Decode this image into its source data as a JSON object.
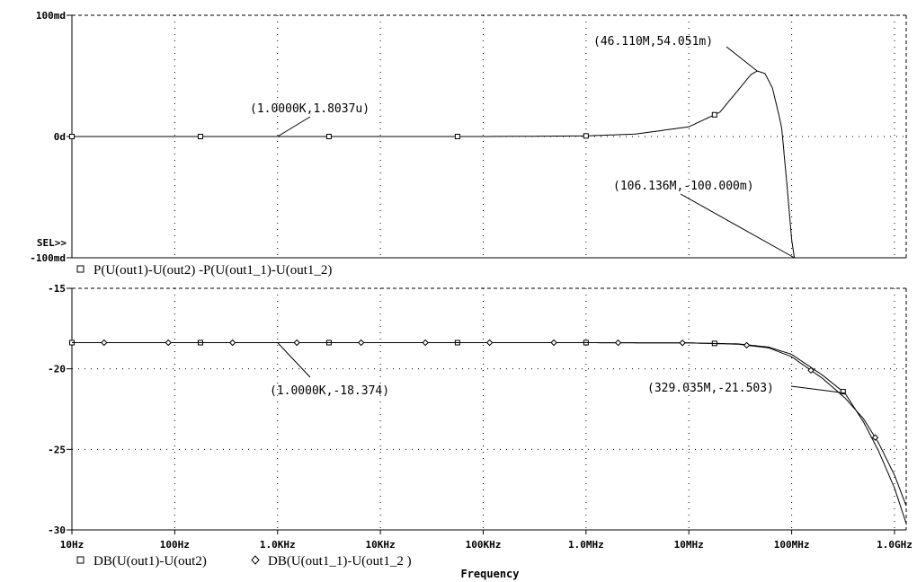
{
  "colors": {
    "background": "#ffffff",
    "ink": "#000000",
    "grid": "#000000"
  },
  "chart_data": [
    {
      "type": "line",
      "xscale": "log",
      "xlim": [
        10,
        1300000000
      ],
      "ylim": [
        -100,
        100
      ],
      "yticks": [
        {
          "value": 100,
          "label": "100md"
        },
        {
          "value": 0,
          "label": "0d"
        },
        {
          "value": -100,
          "label": "-100md"
        }
      ],
      "sel_marker": "SEL>>",
      "legend": [
        {
          "marker": "square",
          "label": "P(U(out1)-U(out2) -P(U(out1_1)-U(out1_2)"
        }
      ],
      "series": [
        {
          "label": "P(U(out1)-U(out2) -P(U(out1_1)-U(out1_2)",
          "marker": "square",
          "points": [
            [
              10,
              0
            ],
            [
              1000,
              0
            ],
            [
              100000,
              0
            ],
            [
              1000000,
              0.5
            ],
            [
              3000000,
              2
            ],
            [
              10000000,
              8
            ],
            [
              20000000,
              20
            ],
            [
              30000000,
              38
            ],
            [
              40000000,
              51
            ],
            [
              46110000,
              54.051
            ],
            [
              55000000,
              52
            ],
            [
              65000000,
              40
            ],
            [
              75000000,
              18
            ],
            [
              80000000,
              7
            ],
            [
              90000000,
              -40
            ],
            [
              100000000,
              -85
            ],
            [
              106136000,
              -100
            ]
          ]
        }
      ],
      "annotations": [
        {
          "label": "(46.110M,54.051m)",
          "x": 46110000,
          "y": 54.051
        },
        {
          "label": "(1.0000K,1.8037u)",
          "x": 1000,
          "y": 0.0018
        },
        {
          "label": "(106.136M,-100.000m)",
          "x": 106136000,
          "y": -100
        }
      ]
    },
    {
      "type": "line",
      "xscale": "log",
      "xlim": [
        10,
        1300000000
      ],
      "ylim": [
        -30,
        -15
      ],
      "yticks": [
        {
          "value": -15,
          "label": "-15"
        },
        {
          "value": -20,
          "label": "-20"
        },
        {
          "value": -25,
          "label": "-25"
        },
        {
          "value": -30,
          "label": "-30"
        }
      ],
      "xticks": [
        {
          "value": 10,
          "label": "10Hz"
        },
        {
          "value": 100,
          "label": "100Hz"
        },
        {
          "value": 1000,
          "label": "1.0KHz"
        },
        {
          "value": 10000,
          "label": "10KHz"
        },
        {
          "value": 100000,
          "label": "100KHz"
        },
        {
          "value": 1000000,
          "label": "1.0MHz"
        },
        {
          "value": 10000000,
          "label": "10MHz"
        },
        {
          "value": 100000000,
          "label": "100MHz"
        },
        {
          "value": 1000000000,
          "label": "1.0GHz"
        }
      ],
      "xlabel": "Frequency",
      "legend": [
        {
          "marker": "square",
          "label": "DB(U(out1)-U(out2)"
        },
        {
          "marker": "diamond",
          "label": "DB(U(out1_1)-U(out1_2 )"
        }
      ],
      "series": [
        {
          "label": "DB(U(out1)-U(out2)",
          "marker": "square",
          "points": [
            [
              10,
              -18.374
            ],
            [
              1000,
              -18.374
            ],
            [
              1000000,
              -18.374
            ],
            [
              10000000,
              -18.39
            ],
            [
              30000000,
              -18.45
            ],
            [
              60000000,
              -18.65
            ],
            [
              100000000,
              -19.1
            ],
            [
              200000000,
              -20.4
            ],
            [
              329035000,
              -21.503
            ],
            [
              500000000,
              -23.3
            ],
            [
              700000000,
              -25.1
            ],
            [
              1000000000,
              -27.4
            ],
            [
              1300000000,
              -29.6
            ]
          ]
        },
        {
          "label": "DB(U(out1_1)-U(out1_2 )",
          "marker": "diamond",
          "points": [
            [
              10,
              -18.374
            ],
            [
              1000,
              -18.374
            ],
            [
              1000000,
              -18.374
            ],
            [
              10000000,
              -18.39
            ],
            [
              30000000,
              -18.47
            ],
            [
              60000000,
              -18.7
            ],
            [
              100000000,
              -19.25
            ],
            [
              200000000,
              -20.6
            ],
            [
              329035000,
              -21.8
            ],
            [
              500000000,
              -23.1
            ],
            [
              700000000,
              -24.6
            ],
            [
              1000000000,
              -26.6
            ],
            [
              1300000000,
              -28.5
            ]
          ]
        }
      ],
      "annotations": [
        {
          "label": "(1.0000K,-18.374)",
          "x": 1000,
          "y": -18.374
        },
        {
          "label": "(329.035M,-21.503)",
          "x": 329035000,
          "y": -21.503
        }
      ]
    }
  ]
}
